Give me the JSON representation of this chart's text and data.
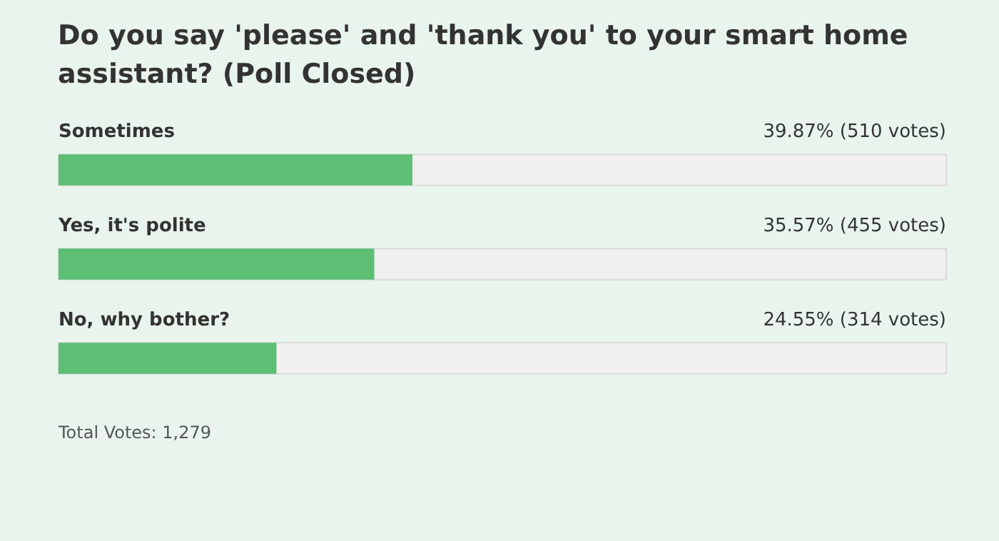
{
  "chart_data": {
    "type": "bar",
    "orientation": "horizontal",
    "title": "Do you say 'please' and 'thank you' to your smart home assistant? (Poll Closed)",
    "categories": [
      "Sometimes",
      "Yes, it's polite",
      "No, why bother?"
    ],
    "values": [
      39.87,
      35.57,
      24.55
    ],
    "value_labels": [
      "39.87% (510 votes)",
      "35.57% (455 votes)",
      "24.55% (314 votes)"
    ],
    "color": "#5cbf73",
    "xlim": [
      0,
      100
    ],
    "tick_labels": false,
    "annotations": [
      "Total Votes: 1,279"
    ]
  }
}
